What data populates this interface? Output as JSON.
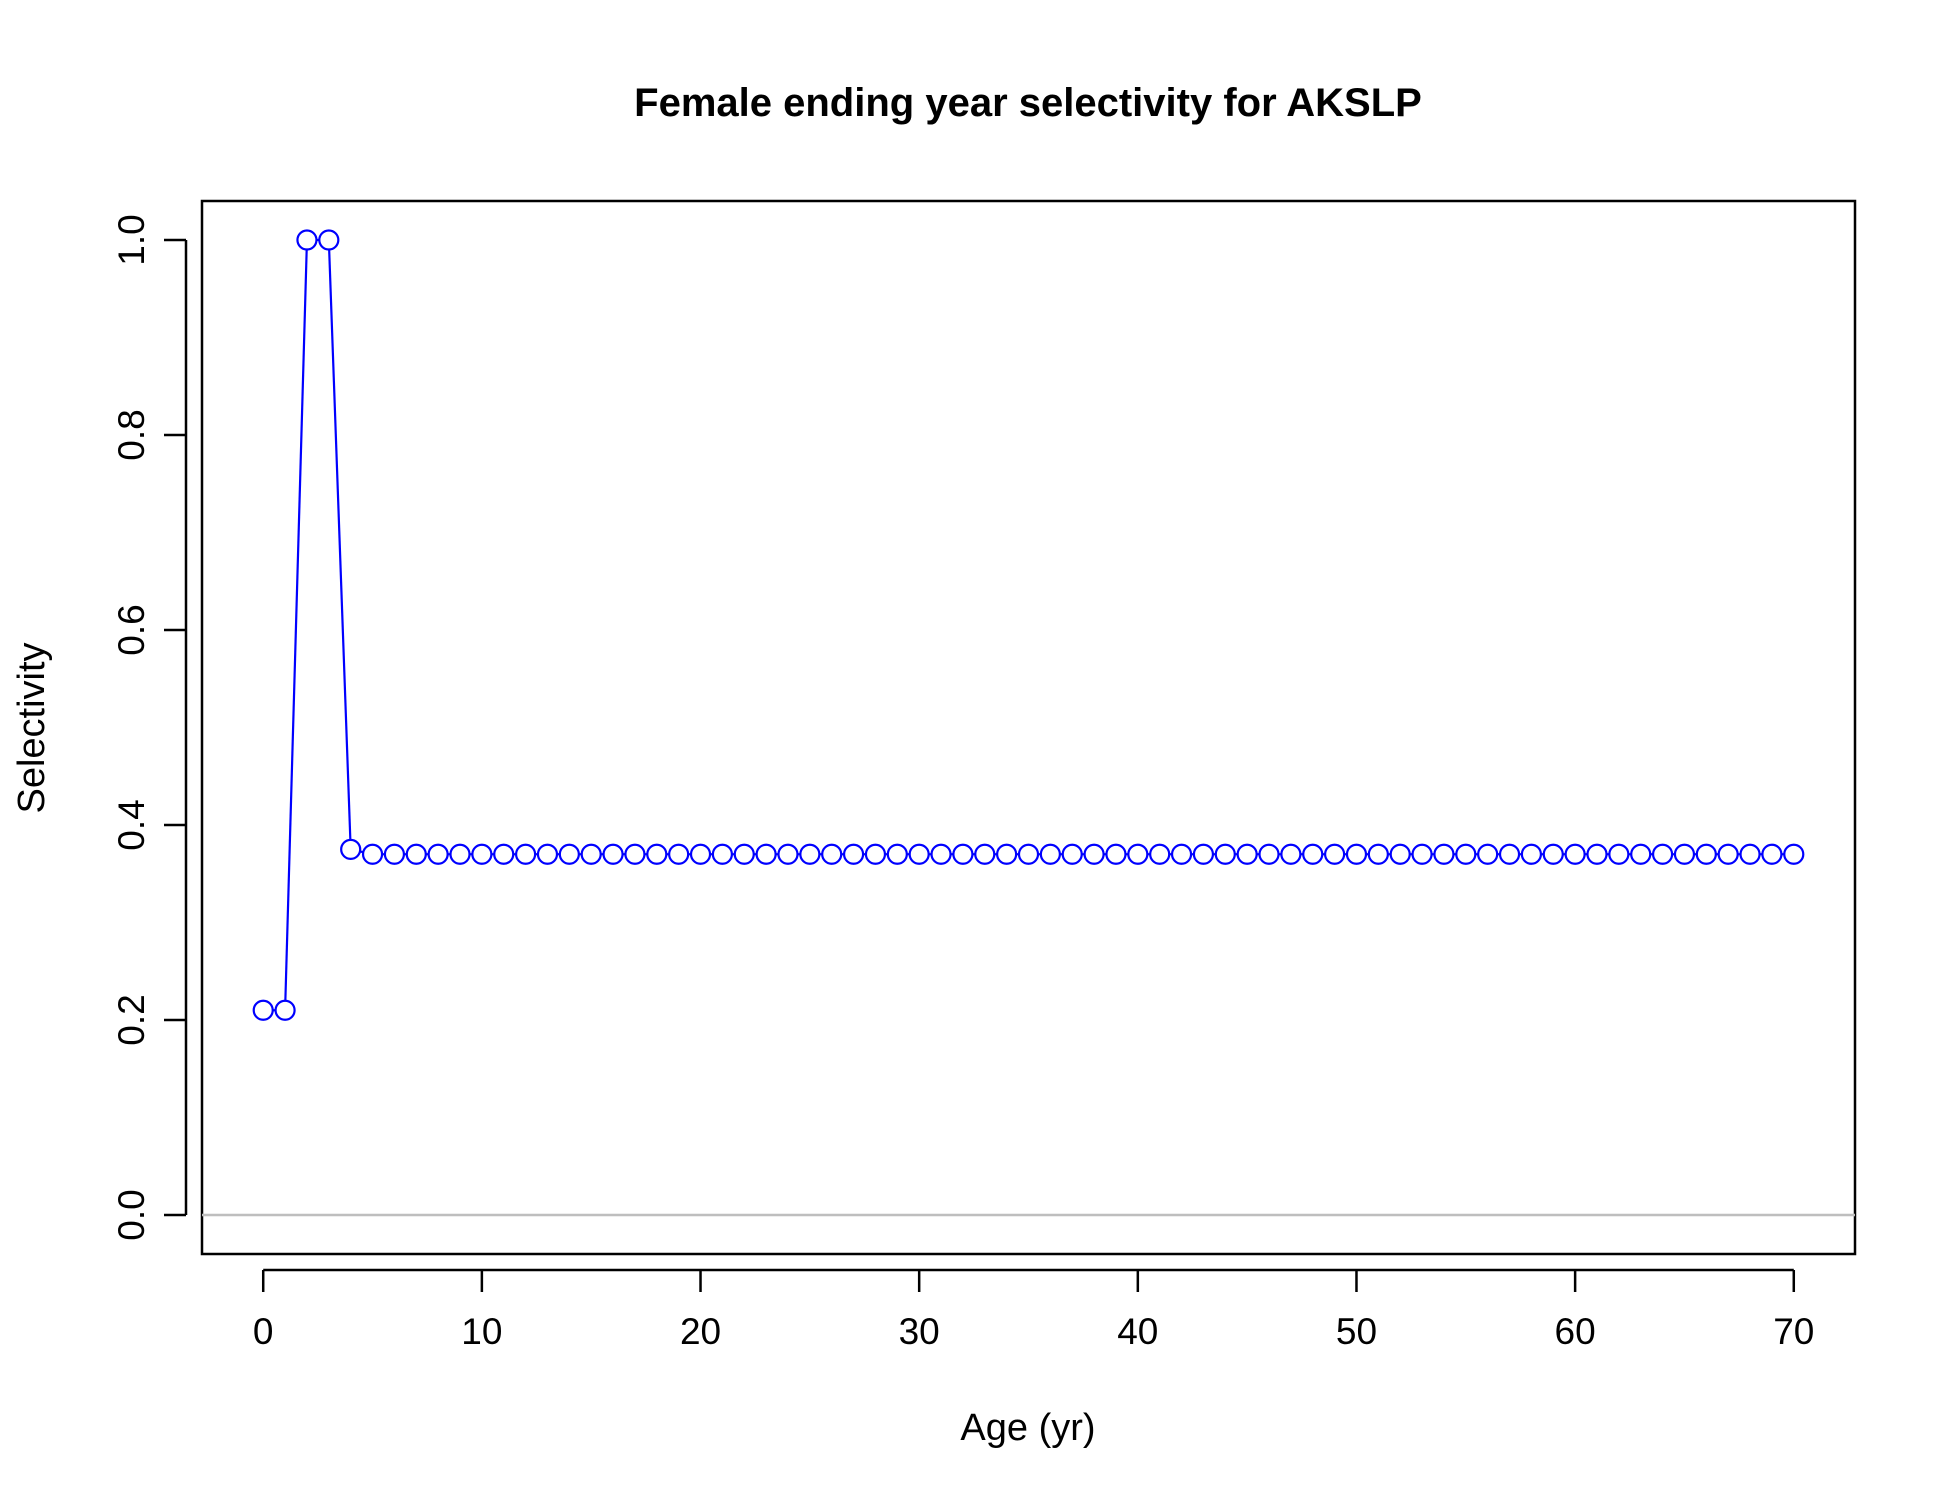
{
  "chart_data": {
    "type": "line",
    "title": "Female ending year selectivity for AKSLP",
    "xlabel": "Age (yr)",
    "ylabel": "Selectivity",
    "xlim": [
      -2.8,
      72.8
    ],
    "ylim": [
      -0.04,
      1.04
    ],
    "xticks": [
      "0",
      "10",
      "20",
      "30",
      "40",
      "50",
      "60",
      "70"
    ],
    "yticks": [
      "0.0",
      "0.2",
      "0.4",
      "0.6",
      "0.8",
      "1.0"
    ],
    "reference_line_y": 0,
    "grid": false,
    "legend": "none",
    "series": [
      {
        "marker": "open-circle",
        "color": "#0000ff",
        "x": [
          0,
          1,
          2,
          3,
          4,
          5,
          6,
          7,
          8,
          9,
          10,
          11,
          12,
          13,
          14,
          15,
          16,
          17,
          18,
          19,
          20,
          21,
          22,
          23,
          24,
          25,
          26,
          27,
          28,
          29,
          30,
          31,
          32,
          33,
          34,
          35,
          36,
          37,
          38,
          39,
          40,
          41,
          42,
          43,
          44,
          45,
          46,
          47,
          48,
          49,
          50,
          51,
          52,
          53,
          54,
          55,
          56,
          57,
          58,
          59,
          60,
          61,
          62,
          63,
          64,
          65,
          66,
          67,
          68,
          69,
          70
        ],
        "y": [
          0.21,
          0.21,
          1.0,
          1.0,
          0.375,
          0.37,
          0.37,
          0.37,
          0.37,
          0.37,
          0.37,
          0.37,
          0.37,
          0.37,
          0.37,
          0.37,
          0.37,
          0.37,
          0.37,
          0.37,
          0.37,
          0.37,
          0.37,
          0.37,
          0.37,
          0.37,
          0.37,
          0.37,
          0.37,
          0.37,
          0.37,
          0.37,
          0.37,
          0.37,
          0.37,
          0.37,
          0.37,
          0.37,
          0.37,
          0.37,
          0.37,
          0.37,
          0.37,
          0.37,
          0.37,
          0.37,
          0.37,
          0.37,
          0.37,
          0.37,
          0.37,
          0.37,
          0.37,
          0.37,
          0.37,
          0.37,
          0.37,
          0.37,
          0.37,
          0.37,
          0.37,
          0.37,
          0.37,
          0.37,
          0.37,
          0.37,
          0.37,
          0.37,
          0.37,
          0.37,
          0.37
        ]
      }
    ],
    "colors": {
      "series": "#0000ff",
      "reference_line": "#bebebe",
      "axes": "#000000"
    }
  }
}
